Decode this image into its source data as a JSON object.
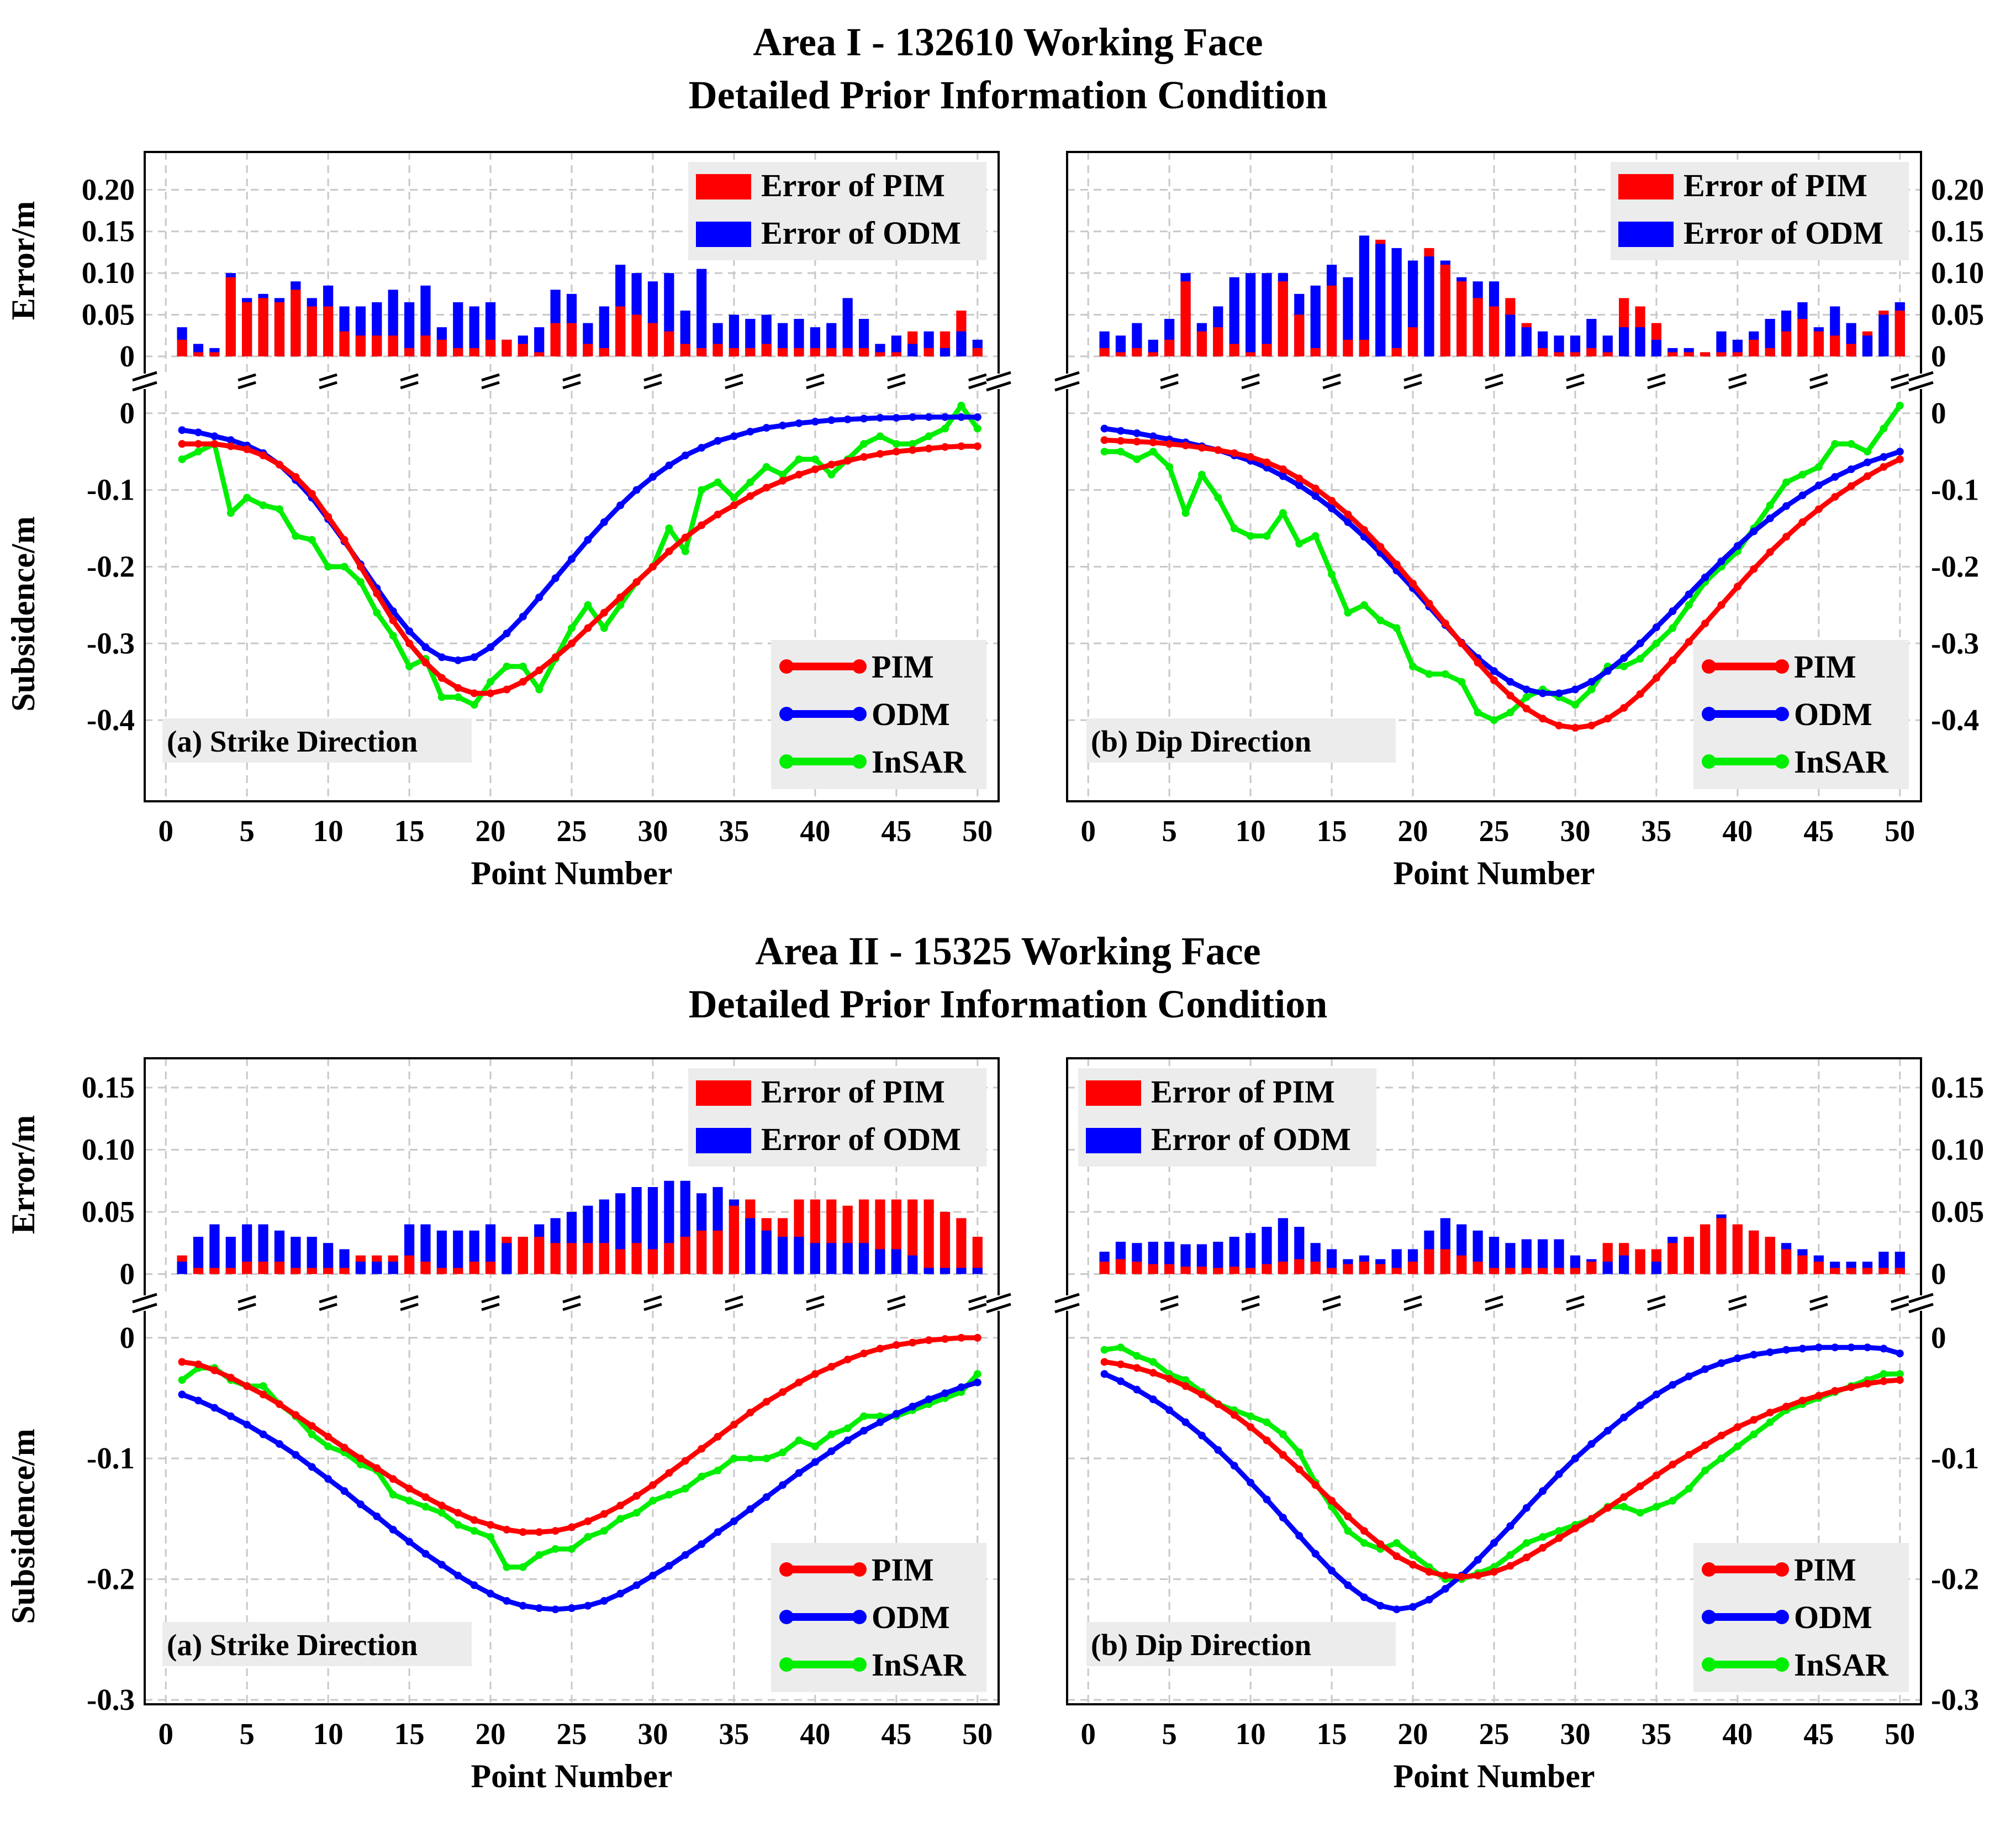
{
  "figure": {
    "areas": [
      {
        "title_line1": "Area I - 132610 Working Face",
        "title_line2": "Detailed Prior Information Condition"
      },
      {
        "title_line1": "Area II - 15325 Working Face",
        "title_line2": "Detailed Prior Information Condition"
      }
    ],
    "colors": {
      "pim": "#ff0000",
      "odm": "#0000ff",
      "insar": "#00ee00"
    },
    "legend": {
      "err_pim": "Error of PIM",
      "err_odm": "Error of ODM",
      "pim": "PIM",
      "odm": "ODM",
      "insar": "InSAR"
    }
  },
  "chart_data": [
    {
      "type": "line+bar",
      "area": "Area I - 132610 Working Face",
      "panel_label": "(a) Strike Direction",
      "xlabel": "Point Number",
      "error_ylabel": "Error/m",
      "subsidence_ylabel": "Subsidence/m",
      "x_ticks": [
        0,
        5,
        10,
        15,
        20,
        25,
        30,
        35,
        40,
        45,
        50
      ],
      "error_ylim": [
        -0.01,
        0.24
      ],
      "error_ticks": [
        0,
        0.05,
        0.1,
        0.15,
        0.2
      ],
      "error_tick_labels": [
        "0",
        "0.05",
        "0.10",
        "0.15",
        "0.20"
      ],
      "subsidence_ylim": [
        -0.5,
        0.02
      ],
      "subsidence_ticks": [
        0,
        -0.1,
        -0.2,
        -0.3,
        -0.4
      ],
      "subsidence_tick_labels": [
        "0",
        "-0.1",
        "-0.2",
        "-0.3",
        "-0.4"
      ],
      "error_pim": [
        0.02,
        0.005,
        0.005,
        0.095,
        0.065,
        0.07,
        0.065,
        0.08,
        0.06,
        0.06,
        0.03,
        0.025,
        0.025,
        0.025,
        0.01,
        0.025,
        0.02,
        0.01,
        0.01,
        0.02,
        0.02,
        0.015,
        0.005,
        0.04,
        0.04,
        0.015,
        0.01,
        0.06,
        0.05,
        0.04,
        0.03,
        0.015,
        0.01,
        0.015,
        0.01,
        0.01,
        0.015,
        0.01,
        0.01,
        0.01,
        0.01,
        0.01,
        0.01,
        0.005,
        0.005,
        0.03,
        0.01,
        0.03,
        0.055,
        0.01
      ],
      "error_odm": [
        0.035,
        0.015,
        0.01,
        0.1,
        0.07,
        0.075,
        0.07,
        0.09,
        0.07,
        0.085,
        0.06,
        0.06,
        0.065,
        0.08,
        0.065,
        0.085,
        0.035,
        0.065,
        0.06,
        0.065,
        0.02,
        0.025,
        0.035,
        0.08,
        0.075,
        0.04,
        0.06,
        0.11,
        0.1,
        0.09,
        0.1,
        0.055,
        0.105,
        0.04,
        0.05,
        0.045,
        0.05,
        0.04,
        0.045,
        0.035,
        0.04,
        0.07,
        0.045,
        0.015,
        0.025,
        0.015,
        0.03,
        0.01,
        0.03,
        0.02
      ],
      "subsidence_pim": [
        -0.04,
        -0.04,
        -0.04,
        -0.043,
        -0.047,
        -0.055,
        -0.067,
        -0.083,
        -0.105,
        -0.135,
        -0.165,
        -0.2,
        -0.235,
        -0.27,
        -0.3,
        -0.325,
        -0.345,
        -0.358,
        -0.365,
        -0.365,
        -0.36,
        -0.35,
        -0.335,
        -0.318,
        -0.3,
        -0.28,
        -0.26,
        -0.24,
        -0.22,
        -0.2,
        -0.18,
        -0.162,
        -0.146,
        -0.132,
        -0.12,
        -0.108,
        -0.097,
        -0.088,
        -0.08,
        -0.073,
        -0.067,
        -0.062,
        -0.057,
        -0.053,
        -0.05,
        -0.048,
        -0.046,
        -0.044,
        -0.043,
        -0.043
      ],
      "subsidence_odm": [
        -0.022,
        -0.025,
        -0.03,
        -0.035,
        -0.042,
        -0.052,
        -0.067,
        -0.087,
        -0.11,
        -0.138,
        -0.167,
        -0.197,
        -0.228,
        -0.258,
        -0.284,
        -0.305,
        -0.318,
        -0.322,
        -0.318,
        -0.305,
        -0.287,
        -0.265,
        -0.24,
        -0.215,
        -0.19,
        -0.165,
        -0.142,
        -0.12,
        -0.1,
        -0.083,
        -0.068,
        -0.055,
        -0.045,
        -0.036,
        -0.03,
        -0.024,
        -0.019,
        -0.016,
        -0.013,
        -0.011,
        -0.009,
        -0.008,
        -0.007,
        -0.006,
        -0.006,
        -0.005,
        -0.005,
        -0.005,
        -0.005,
        -0.005
      ],
      "subsidence_insar": [
        -0.06,
        -0.05,
        -0.04,
        -0.13,
        -0.11,
        -0.12,
        -0.125,
        -0.16,
        -0.165,
        -0.2,
        -0.2,
        -0.22,
        -0.26,
        -0.29,
        -0.33,
        -0.32,
        -0.37,
        -0.37,
        -0.38,
        -0.35,
        -0.33,
        -0.33,
        -0.36,
        -0.32,
        -0.28,
        -0.25,
        -0.28,
        -0.25,
        -0.22,
        -0.2,
        -0.15,
        -0.18,
        -0.1,
        -0.09,
        -0.11,
        -0.09,
        -0.07,
        -0.08,
        -0.06,
        -0.06,
        -0.08,
        -0.06,
        -0.04,
        -0.03,
        -0.04,
        -0.04,
        -0.03,
        -0.02,
        0.01,
        -0.02
      ]
    },
    {
      "type": "line+bar",
      "area": "Area I - 132610 Working Face",
      "panel_label": "(b) Dip Direction",
      "xlabel": "Point Number",
      "y_axis_side": "right",
      "x_ticks": [
        0,
        5,
        10,
        15,
        20,
        25,
        30,
        35,
        40,
        45,
        50
      ],
      "error_ylim": [
        -0.01,
        0.24
      ],
      "error_ticks": [
        0,
        0.05,
        0.1,
        0.15,
        0.2
      ],
      "error_tick_labels": [
        "0",
        "0.05",
        "0.10",
        "0.15",
        "0.20"
      ],
      "subsidence_ylim": [
        -0.5,
        0.02
      ],
      "subsidence_ticks": [
        0,
        -0.1,
        -0.2,
        -0.3,
        -0.4
      ],
      "subsidence_tick_labels": [
        "0",
        "-0.1",
        "-0.2",
        "-0.3",
        "-0.4"
      ],
      "error_pim": [
        0.01,
        0.005,
        0.01,
        0.005,
        0.02,
        0.09,
        0.03,
        0.035,
        0.015,
        0.005,
        0.015,
        0.09,
        0.05,
        0.01,
        0.085,
        0.02,
        0.02,
        0.14,
        0.01,
        0.035,
        0.13,
        0.11,
        0.09,
        0.07,
        0.06,
        0.07,
        0.04,
        0.01,
        0.005,
        0.005,
        0.01,
        0.005,
        0.07,
        0.06,
        0.04,
        0.005,
        0.005,
        0.005,
        0.005,
        0.005,
        0.02,
        0.01,
        0.03,
        0.045,
        0.03,
        0.025,
        0.015,
        0.03,
        0.055,
        0.055
      ],
      "error_odm": [
        0.03,
        0.025,
        0.04,
        0.02,
        0.045,
        0.1,
        0.04,
        0.06,
        0.095,
        0.1,
        0.1,
        0.1,
        0.075,
        0.085,
        0.11,
        0.095,
        0.145,
        0.135,
        0.13,
        0.115,
        0.12,
        0.115,
        0.095,
        0.09,
        0.09,
        0.05,
        0.035,
        0.03,
        0.025,
        0.025,
        0.045,
        0.025,
        0.035,
        0.035,
        0.02,
        0.01,
        0.01,
        0.005,
        0.03,
        0.02,
        0.03,
        0.045,
        0.055,
        0.065,
        0.035,
        0.06,
        0.04,
        0.025,
        0.05,
        0.065
      ],
      "subsidence_pim": [
        -0.035,
        -0.036,
        -0.037,
        -0.038,
        -0.04,
        -0.042,
        -0.045,
        -0.048,
        -0.052,
        -0.057,
        -0.064,
        -0.073,
        -0.085,
        -0.098,
        -0.114,
        -0.132,
        -0.152,
        -0.174,
        -0.197,
        -0.222,
        -0.248,
        -0.274,
        -0.3,
        -0.325,
        -0.348,
        -0.368,
        -0.385,
        -0.398,
        -0.407,
        -0.41,
        -0.407,
        -0.398,
        -0.384,
        -0.366,
        -0.345,
        -0.322,
        -0.298,
        -0.274,
        -0.25,
        -0.226,
        -0.203,
        -0.181,
        -0.161,
        -0.142,
        -0.125,
        -0.109,
        -0.095,
        -0.082,
        -0.07,
        -0.06
      ],
      "subsidence_odm": [
        -0.02,
        -0.023,
        -0.026,
        -0.03,
        -0.034,
        -0.038,
        -0.043,
        -0.048,
        -0.055,
        -0.062,
        -0.071,
        -0.082,
        -0.094,
        -0.108,
        -0.124,
        -0.142,
        -0.161,
        -0.182,
        -0.205,
        -0.228,
        -0.252,
        -0.276,
        -0.299,
        -0.319,
        -0.336,
        -0.35,
        -0.36,
        -0.365,
        -0.365,
        -0.36,
        -0.35,
        -0.336,
        -0.319,
        -0.3,
        -0.279,
        -0.258,
        -0.236,
        -0.214,
        -0.193,
        -0.173,
        -0.154,
        -0.137,
        -0.121,
        -0.107,
        -0.094,
        -0.083,
        -0.073,
        -0.064,
        -0.057,
        -0.05
      ],
      "subsidence_insar": [
        -0.05,
        -0.05,
        -0.06,
        -0.05,
        -0.07,
        -0.13,
        -0.08,
        -0.11,
        -0.15,
        -0.16,
        -0.16,
        -0.13,
        -0.17,
        -0.16,
        -0.21,
        -0.26,
        -0.25,
        -0.27,
        -0.28,
        -0.33,
        -0.34,
        -0.34,
        -0.35,
        -0.39,
        -0.4,
        -0.39,
        -0.37,
        -0.36,
        -0.37,
        -0.38,
        -0.36,
        -0.33,
        -0.33,
        -0.32,
        -0.3,
        -0.28,
        -0.25,
        -0.22,
        -0.2,
        -0.18,
        -0.15,
        -0.12,
        -0.09,
        -0.08,
        -0.07,
        -0.04,
        -0.04,
        -0.05,
        -0.02,
        0.01
      ]
    },
    {
      "type": "line+bar",
      "area": "Area II - 15325 Working Face",
      "panel_label": "(a) Strike Direction",
      "xlabel": "Point Number",
      "error_ylabel": "Error/m",
      "subsidence_ylabel": "Subsidence/m",
      "x_ticks": [
        0,
        5,
        10,
        15,
        20,
        25,
        30,
        35,
        40,
        45,
        50
      ],
      "error_ylim": [
        -0.01,
        0.17
      ],
      "error_ticks": [
        0,
        0.05,
        0.1,
        0.15
      ],
      "error_tick_labels": [
        "0",
        "0.05",
        "0.10",
        "0.15"
      ],
      "subsidence_ylim": [
        -0.3,
        0.015
      ],
      "subsidence_ticks": [
        0,
        -0.1,
        -0.2,
        -0.3
      ],
      "subsidence_tick_labels": [
        "0",
        "-0.1",
        "-0.2",
        "-0.3"
      ],
      "error_pim": [
        0.015,
        0.005,
        0.005,
        0.005,
        0.01,
        0.01,
        0.01,
        0.005,
        0.005,
        0.005,
        0.005,
        0.015,
        0.015,
        0.015,
        0.015,
        0.01,
        0.005,
        0.005,
        0.01,
        0.01,
        0.03,
        0.03,
        0.03,
        0.025,
        0.025,
        0.025,
        0.025,
        0.02,
        0.025,
        0.02,
        0.025,
        0.03,
        0.035,
        0.035,
        0.055,
        0.06,
        0.045,
        0.045,
        0.06,
        0.06,
        0.06,
        0.055,
        0.06,
        0.06,
        0.06,
        0.06,
        0.06,
        0.05,
        0.045,
        0.03
      ],
      "error_odm": [
        0.01,
        0.03,
        0.04,
        0.03,
        0.04,
        0.04,
        0.035,
        0.03,
        0.03,
        0.025,
        0.02,
        0.01,
        0.01,
        0.01,
        0.04,
        0.04,
        0.035,
        0.035,
        0.035,
        0.04,
        0.025,
        0.03,
        0.04,
        0.045,
        0.05,
        0.055,
        0.06,
        0.065,
        0.07,
        0.07,
        0.075,
        0.075,
        0.065,
        0.07,
        0.06,
        0.045,
        0.035,
        0.03,
        0.03,
        0.025,
        0.025,
        0.025,
        0.025,
        0.02,
        0.02,
        0.015,
        0.005,
        0.005,
        0.005,
        0.005
      ],
      "subsidence_pim": [
        -0.02,
        -0.022,
        -0.027,
        -0.033,
        -0.04,
        -0.047,
        -0.055,
        -0.064,
        -0.073,
        -0.082,
        -0.091,
        -0.1,
        -0.108,
        -0.117,
        -0.125,
        -0.132,
        -0.139,
        -0.145,
        -0.151,
        -0.155,
        -0.159,
        -0.161,
        -0.161,
        -0.16,
        -0.157,
        -0.152,
        -0.146,
        -0.139,
        -0.131,
        -0.122,
        -0.112,
        -0.102,
        -0.092,
        -0.082,
        -0.072,
        -0.062,
        -0.053,
        -0.045,
        -0.037,
        -0.03,
        -0.024,
        -0.018,
        -0.013,
        -0.009,
        -0.006,
        -0.004,
        -0.002,
        -0.001,
        0,
        0
      ],
      "subsidence_odm": [
        -0.047,
        -0.052,
        -0.058,
        -0.065,
        -0.072,
        -0.08,
        -0.088,
        -0.097,
        -0.107,
        -0.117,
        -0.127,
        -0.138,
        -0.148,
        -0.159,
        -0.169,
        -0.179,
        -0.188,
        -0.197,
        -0.205,
        -0.212,
        -0.218,
        -0.222,
        -0.224,
        -0.225,
        -0.224,
        -0.222,
        -0.218,
        -0.212,
        -0.205,
        -0.197,
        -0.189,
        -0.18,
        -0.171,
        -0.161,
        -0.152,
        -0.142,
        -0.132,
        -0.122,
        -0.112,
        -0.103,
        -0.094,
        -0.085,
        -0.077,
        -0.07,
        -0.063,
        -0.057,
        -0.051,
        -0.046,
        -0.041,
        -0.037
      ],
      "subsidence_insar": [
        -0.035,
        -0.025,
        -0.025,
        -0.035,
        -0.04,
        -0.04,
        -0.055,
        -0.065,
        -0.08,
        -0.09,
        -0.095,
        -0.105,
        -0.11,
        -0.13,
        -0.135,
        -0.14,
        -0.145,
        -0.155,
        -0.16,
        -0.165,
        -0.19,
        -0.19,
        -0.18,
        -0.175,
        -0.175,
        -0.165,
        -0.16,
        -0.15,
        -0.145,
        -0.135,
        -0.13,
        -0.125,
        -0.115,
        -0.11,
        -0.1,
        -0.1,
        -0.1,
        -0.095,
        -0.085,
        -0.09,
        -0.08,
        -0.075,
        -0.065,
        -0.065,
        -0.065,
        -0.06,
        -0.055,
        -0.05,
        -0.045,
        -0.03
      ]
    },
    {
      "type": "line+bar",
      "area": "Area II - 15325 Working Face",
      "panel_label": "(b) Dip Direction",
      "xlabel": "Point Number",
      "y_axis_side": "right",
      "x_ticks": [
        0,
        5,
        10,
        15,
        20,
        25,
        30,
        35,
        40,
        45,
        50
      ],
      "error_ylim": [
        -0.01,
        0.17
      ],
      "error_ticks": [
        0,
        0.05,
        0.1,
        0.15
      ],
      "error_tick_labels": [
        "0",
        "0.05",
        "0.10",
        "0.15"
      ],
      "subsidence_ylim": [
        -0.3,
        0.015
      ],
      "subsidence_ticks": [
        0,
        -0.1,
        -0.2,
        -0.3
      ],
      "subsidence_tick_labels": [
        "0",
        "-0.1",
        "-0.2",
        "-0.3"
      ],
      "error_pim": [
        0.01,
        0.012,
        0.01,
        0.008,
        0.008,
        0.006,
        0.006,
        0.005,
        0.006,
        0.005,
        0.008,
        0.01,
        0.012,
        0.01,
        0.005,
        0.008,
        0.01,
        0.008,
        0.005,
        0.01,
        0.02,
        0.02,
        0.015,
        0.01,
        0.005,
        0.005,
        0.005,
        0.005,
        0.005,
        0.005,
        0.01,
        0.025,
        0.025,
        0.02,
        0.02,
        0.025,
        0.03,
        0.04,
        0.045,
        0.04,
        0.035,
        0.03,
        0.02,
        0.015,
        0.01,
        0.005,
        0.005,
        0.005,
        0.005,
        0.005
      ],
      "error_odm": [
        0.018,
        0.026,
        0.025,
        0.026,
        0.026,
        0.024,
        0.024,
        0.026,
        0.03,
        0.033,
        0.038,
        0.045,
        0.038,
        0.025,
        0.02,
        0.012,
        0.015,
        0.012,
        0.02,
        0.02,
        0.035,
        0.045,
        0.04,
        0.035,
        0.03,
        0.025,
        0.028,
        0.028,
        0.028,
        0.015,
        0.012,
        0.01,
        0.015,
        0.02,
        0.01,
        0.03,
        0.03,
        0.04,
        0.048,
        0.04,
        0.035,
        0.03,
        0.025,
        0.02,
        0.015,
        0.01,
        0.01,
        0.01,
        0.018,
        0.018
      ],
      "subsidence_pim": [
        -0.02,
        -0.022,
        -0.025,
        -0.029,
        -0.034,
        -0.04,
        -0.047,
        -0.055,
        -0.064,
        -0.074,
        -0.085,
        -0.097,
        -0.109,
        -0.122,
        -0.135,
        -0.148,
        -0.16,
        -0.171,
        -0.181,
        -0.188,
        -0.194,
        -0.197,
        -0.198,
        -0.197,
        -0.194,
        -0.189,
        -0.182,
        -0.174,
        -0.166,
        -0.158,
        -0.15,
        -0.141,
        -0.132,
        -0.123,
        -0.114,
        -0.105,
        -0.097,
        -0.089,
        -0.081,
        -0.074,
        -0.068,
        -0.062,
        -0.057,
        -0.052,
        -0.048,
        -0.044,
        -0.041,
        -0.038,
        -0.036,
        -0.035
      ],
      "subsidence_odm": [
        -0.03,
        -0.036,
        -0.043,
        -0.051,
        -0.06,
        -0.07,
        -0.081,
        -0.093,
        -0.106,
        -0.12,
        -0.134,
        -0.149,
        -0.164,
        -0.179,
        -0.193,
        -0.205,
        -0.215,
        -0.222,
        -0.225,
        -0.223,
        -0.217,
        -0.208,
        -0.197,
        -0.184,
        -0.17,
        -0.156,
        -0.141,
        -0.127,
        -0.113,
        -0.1,
        -0.088,
        -0.077,
        -0.066,
        -0.056,
        -0.047,
        -0.039,
        -0.032,
        -0.026,
        -0.021,
        -0.017,
        -0.014,
        -0.012,
        -0.01,
        -0.009,
        -0.008,
        -0.008,
        -0.008,
        -0.008,
        -0.009,
        -0.013
      ],
      "subsidence_insar": [
        -0.01,
        -0.008,
        -0.015,
        -0.02,
        -0.03,
        -0.035,
        -0.045,
        -0.055,
        -0.06,
        -0.065,
        -0.07,
        -0.08,
        -0.095,
        -0.12,
        -0.14,
        -0.16,
        -0.17,
        -0.175,
        -0.17,
        -0.18,
        -0.19,
        -0.2,
        -0.2,
        -0.195,
        -0.19,
        -0.18,
        -0.17,
        -0.165,
        -0.16,
        -0.155,
        -0.15,
        -0.14,
        -0.14,
        -0.145,
        -0.14,
        -0.135,
        -0.125,
        -0.11,
        -0.1,
        -0.09,
        -0.08,
        -0.07,
        -0.06,
        -0.055,
        -0.05,
        -0.045,
        -0.04,
        -0.035,
        -0.03,
        -0.03
      ]
    }
  ]
}
